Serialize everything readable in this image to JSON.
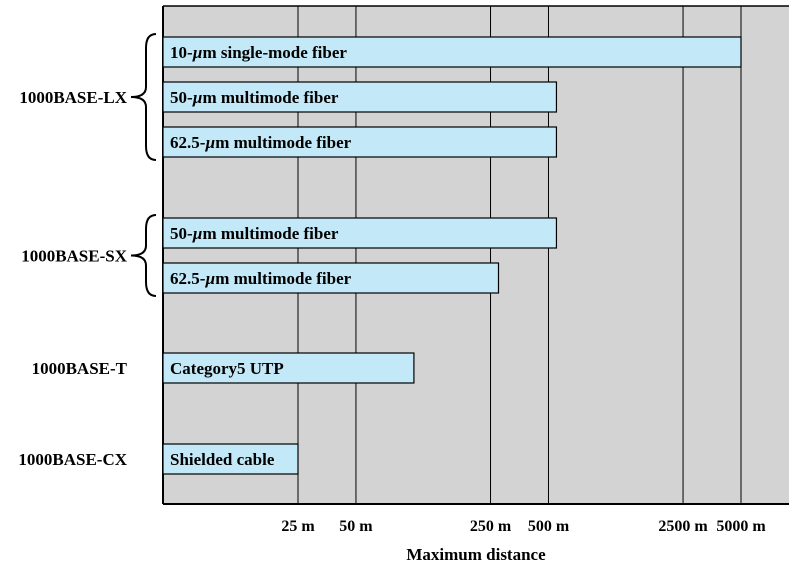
{
  "chart_data": {
    "type": "bar",
    "orientation": "horizontal",
    "xlabel": "Maximum distance",
    "x_scale": "log",
    "xlim_m": [
      5,
      10000
    ],
    "x_gridlines_m": [
      25,
      50,
      250,
      500,
      2500,
      5000
    ],
    "x_tick_labels": [
      "25 m",
      "50 m",
      "250 m",
      "500 m",
      "2500 m",
      "5000 m"
    ],
    "grid": true,
    "groups": [
      {
        "name": "1000BASE-LX",
        "bars": [
          {
            "label": "10-µm single-mode fiber",
            "max_distance_m": 5000
          },
          {
            "label": "50-µm multimode fiber",
            "max_distance_m": 550
          },
          {
            "label": "62.5-µm multimode fiber",
            "max_distance_m": 550
          }
        ]
      },
      {
        "name": "1000BASE-SX",
        "bars": [
          {
            "label": "50-µm multimode fiber",
            "max_distance_m": 550
          },
          {
            "label": "62.5-µm multimode fiber",
            "max_distance_m": 275
          }
        ]
      },
      {
        "name": "1000BASE-T",
        "bars": [
          {
            "label": "Category5 UTP",
            "max_distance_m": 100
          }
        ]
      },
      {
        "name": "1000BASE-CX",
        "bars": [
          {
            "label": "Shielded cable",
            "max_distance_m": 25
          }
        ]
      }
    ],
    "colors": {
      "plot_background": "#d3d3d3",
      "bar_fill": "#c3e9f8",
      "bar_stroke": "#000000",
      "grid_line": "#000000"
    }
  }
}
